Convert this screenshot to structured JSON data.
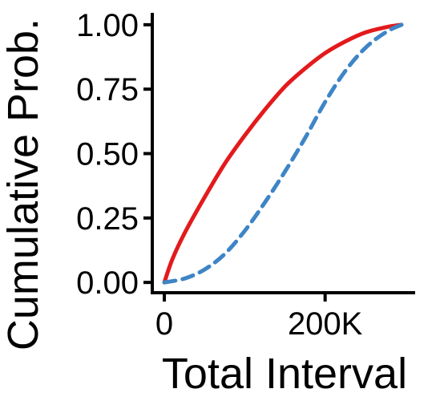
{
  "chart_data": {
    "type": "line",
    "title": "",
    "xlabel": "Total Interval",
    "ylabel": "Cumulative Prob.",
    "xlim": [
      -15000,
      310000
    ],
    "ylim": [
      -0.04,
      1.04
    ],
    "x_ticks": [
      {
        "value": 0,
        "label": "0"
      },
      {
        "value": 200000,
        "label": "200K"
      }
    ],
    "y_ticks": [
      {
        "value": 0.0,
        "label": "0.00"
      },
      {
        "value": 0.25,
        "label": "0.25"
      },
      {
        "value": 0.5,
        "label": "0.50"
      },
      {
        "value": 0.75,
        "label": "0.75"
      },
      {
        "value": 1.0,
        "label": "1.00"
      }
    ],
    "grid": false,
    "legend": "none",
    "series": [
      {
        "color": "#e31a1c",
        "style": "solid",
        "x": [
          0,
          10000,
          25000,
          50000,
          75000,
          100000,
          125000,
          150000,
          175000,
          200000,
          225000,
          250000,
          275000,
          295000
        ],
        "y": [
          0.0,
          0.09,
          0.19,
          0.33,
          0.46,
          0.57,
          0.67,
          0.76,
          0.83,
          0.89,
          0.935,
          0.97,
          0.99,
          1.0
        ]
      },
      {
        "color": "#3d85c6",
        "style": "dashed",
        "x": [
          0,
          25000,
          50000,
          75000,
          100000,
          125000,
          150000,
          175000,
          200000,
          225000,
          250000,
          275000,
          295000
        ],
        "y": [
          0.0,
          0.015,
          0.05,
          0.11,
          0.2,
          0.31,
          0.43,
          0.56,
          0.7,
          0.82,
          0.91,
          0.97,
          1.0
        ]
      }
    ],
    "x_tick_labels": [
      "0",
      "200K"
    ],
    "y_tick_labels": [
      "0.00",
      "0.25",
      "0.50",
      "0.75",
      "1.00"
    ],
    "axis_color": "#000000"
  }
}
